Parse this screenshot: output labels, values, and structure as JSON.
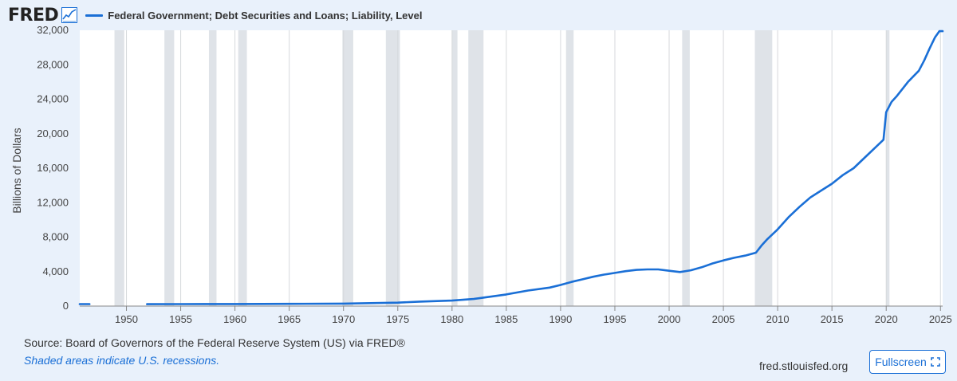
{
  "header": {
    "logo_text": "FRED",
    "legend_label": "Federal Government; Debt Securities and Loans; Liability, Level"
  },
  "footer": {
    "source": "Source: Board of Governors of the Federal Reserve System (US) via FRED®",
    "note": "Shaded areas indicate U.S. recessions.",
    "site": "fred.stlouisfed.org",
    "fullscreen_label": "Fullscreen"
  },
  "colors": {
    "series": "#1a6fd6",
    "recession": "#dfe3e8",
    "background": "#e9f1fb",
    "plot": "#ffffff"
  },
  "chart_data": {
    "type": "line",
    "title": "",
    "xlabel": "",
    "ylabel": "Billions of Dollars",
    "xlim": [
      1945.7,
      2025.2
    ],
    "ylim": [
      0,
      32000
    ],
    "x_ticks": [
      1950,
      1955,
      1960,
      1965,
      1970,
      1975,
      1980,
      1985,
      1990,
      1995,
      2000,
      2005,
      2010,
      2015,
      2020,
      2025
    ],
    "y_ticks": [
      0,
      4000,
      8000,
      12000,
      16000,
      20000,
      24000,
      28000,
      32000
    ],
    "y_tick_labels": [
      "0",
      "4,000",
      "8,000",
      "12,000",
      "16,000",
      "20,000",
      "24,000",
      "28,000",
      "32,000"
    ],
    "grid": "vertical",
    "legend": "top-left",
    "recessions": [
      [
        1948.9,
        1949.8
      ],
      [
        1953.5,
        1954.4
      ],
      [
        1957.6,
        1958.3
      ],
      [
        1960.3,
        1961.1
      ],
      [
        1969.9,
        1970.9
      ],
      [
        1973.9,
        1975.2
      ],
      [
        1980.0,
        1980.5
      ],
      [
        1981.5,
        1982.9
      ],
      [
        1990.5,
        1991.2
      ],
      [
        2001.2,
        2001.9
      ],
      [
        2007.9,
        2009.5
      ],
      [
        2020.0,
        2020.3
      ]
    ],
    "series": [
      {
        "name": "Federal Government; Debt Securities and Loans; Liability, Level",
        "segments": [
          [
            [
              1945.7,
              230
            ],
            [
              1946.6,
              230
            ]
          ],
          [
            [
              1951.9,
              222
            ],
            [
              1955,
              229
            ],
            [
              1960,
              237
            ],
            [
              1965,
              258
            ],
            [
              1970,
              283
            ],
            [
              1975,
              395
            ],
            [
              1977,
              520
            ],
            [
              1980,
              640
            ],
            [
              1982,
              820
            ],
            [
              1983,
              1000
            ],
            [
              1985,
              1350
            ],
            [
              1987,
              1800
            ],
            [
              1989,
              2150
            ],
            [
              1990,
              2450
            ],
            [
              1991,
              2800
            ],
            [
              1992,
              3100
            ],
            [
              1993,
              3400
            ],
            [
              1994,
              3650
            ],
            [
              1995,
              3850
            ],
            [
              1996,
              4050
            ],
            [
              1997,
              4200
            ],
            [
              1998,
              4250
            ],
            [
              1999,
              4250
            ],
            [
              2000,
              4100
            ],
            [
              2001,
              3950
            ],
            [
              2002,
              4150
            ],
            [
              2003,
              4500
            ],
            [
              2004,
              4950
            ],
            [
              2005,
              5300
            ],
            [
              2006,
              5600
            ],
            [
              2007,
              5850
            ],
            [
              2008,
              6200
            ],
            [
              2008.5,
              7000
            ],
            [
              2009,
              7700
            ],
            [
              2010,
              8900
            ],
            [
              2011,
              10300
            ],
            [
              2012,
              11500
            ],
            [
              2013,
              12600
            ],
            [
              2014,
              13400
            ],
            [
              2015,
              14200
            ],
            [
              2016,
              15200
            ],
            [
              2017,
              16000
            ],
            [
              2018,
              17200
            ],
            [
              2019,
              18400
            ],
            [
              2019.75,
              19300
            ],
            [
              2020.0,
              22500
            ],
            [
              2020.5,
              23700
            ],
            [
              2021,
              24400
            ],
            [
              2022,
              26000
            ],
            [
              2023,
              27300
            ],
            [
              2023.5,
              28500
            ],
            [
              2024,
              29900
            ],
            [
              2024.5,
              31200
            ],
            [
              2024.9,
              31900
            ],
            [
              2025.2,
              31900
            ]
          ]
        ]
      }
    ]
  }
}
